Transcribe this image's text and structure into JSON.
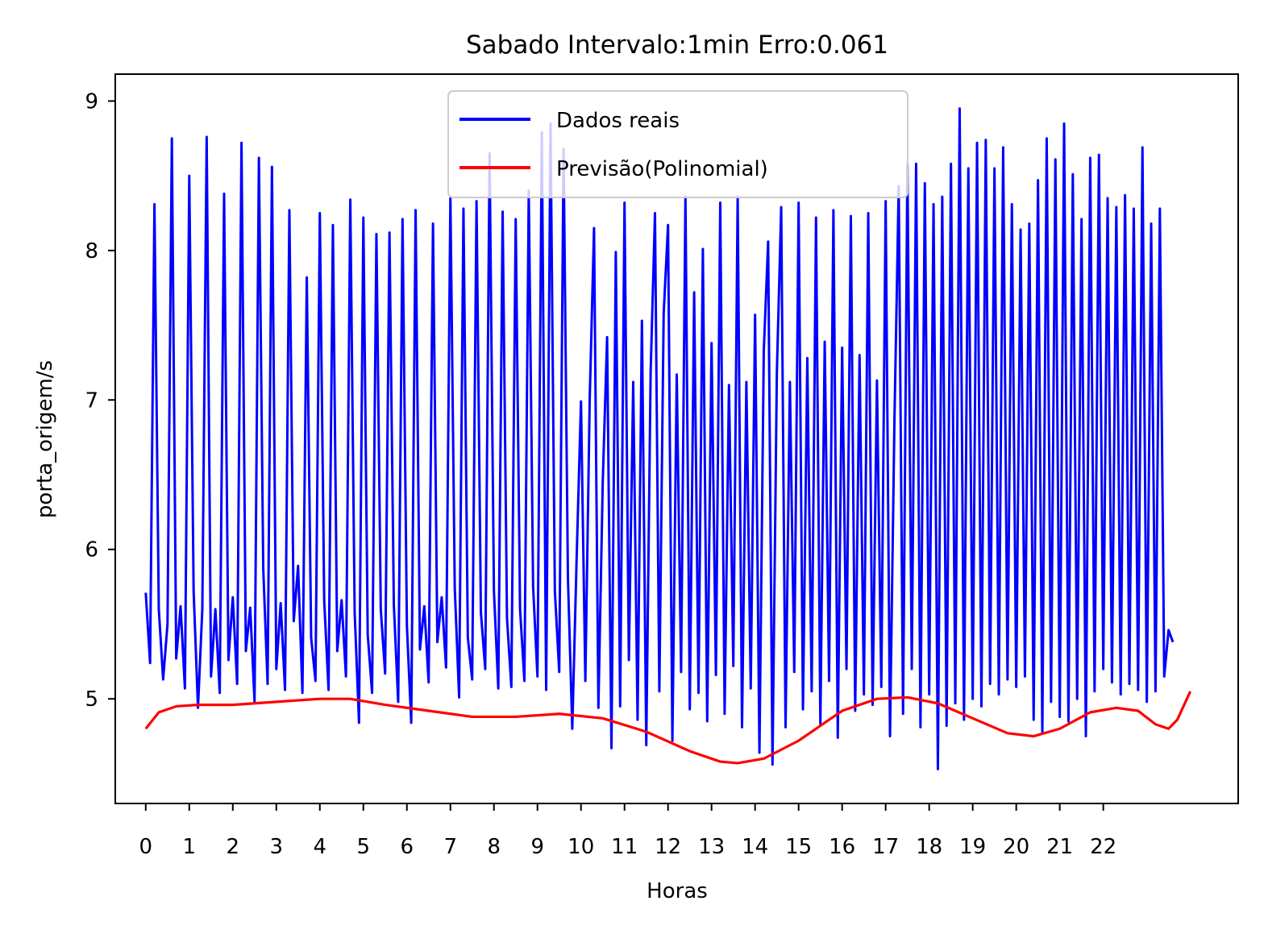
{
  "chart_data": {
    "type": "line",
    "title": "Sabado Intervalo:1min Erro:0.061",
    "xlabel": "Horas",
    "ylabel": "porta_origem/s",
    "xlim": [
      -0.7,
      25.1
    ],
    "ylim": [
      4.3,
      9.18
    ],
    "x_ticks": [
      0,
      1,
      2,
      3,
      4,
      5,
      6,
      7,
      8,
      9,
      10,
      11,
      12,
      13,
      14,
      15,
      16,
      17,
      18,
      19,
      20,
      21,
      22
    ],
    "x_tick_labels": [
      "0",
      "1",
      "2",
      "3",
      "4",
      "5",
      "6",
      "7",
      "8",
      "9",
      "10",
      "11",
      "12",
      "13",
      "14",
      "15",
      "16",
      "17",
      "18",
      "19",
      "20",
      "21",
      "22"
    ],
    "y_ticks": [
      5,
      6,
      7,
      8,
      9
    ],
    "y_tick_labels": [
      "5",
      "6",
      "7",
      "8",
      "9"
    ],
    "grid": false,
    "legend_position": "upper center",
    "series": [
      {
        "name": "Dados reais",
        "color": "#0000ff",
        "note_x_step_hours": 0.1,
        "x_start": 0,
        "values": [
          5.71,
          5.24,
          8.31,
          5.6,
          5.13,
          5.5,
          8.75,
          5.27,
          5.62,
          5.07,
          8.5,
          5.72,
          4.94,
          5.6,
          8.76,
          5.15,
          5.6,
          5.04,
          8.38,
          5.26,
          5.68,
          5.1,
          8.72,
          5.32,
          5.61,
          4.98,
          8.62,
          5.87,
          5.1,
          8.56,
          5.2,
          5.64,
          5.06,
          8.27,
          5.52,
          5.89,
          5.04,
          7.82,
          5.41,
          5.12,
          8.25,
          5.66,
          5.06,
          8.17,
          5.32,
          5.66,
          5.15,
          8.34,
          5.58,
          4.84,
          8.22,
          5.43,
          5.04,
          8.11,
          5.6,
          5.17,
          8.12,
          5.63,
          4.98,
          8.21,
          5.49,
          4.84,
          8.27,
          5.33,
          5.62,
          5.11,
          8.18,
          5.38,
          5.68,
          5.21,
          8.35,
          5.74,
          5.01,
          8.28,
          5.41,
          5.13,
          8.33,
          5.58,
          5.2,
          8.65,
          5.72,
          5.07,
          8.26,
          5.54,
          5.08,
          8.21,
          5.6,
          5.12,
          8.4,
          5.75,
          5.15,
          8.79,
          5.06,
          8.85,
          5.72,
          5.18,
          8.68,
          5.81,
          4.8,
          5.94,
          6.99,
          5.12,
          7.0,
          8.15,
          4.94,
          6.45,
          7.42,
          4.67,
          7.99,
          4.95,
          8.32,
          5.26,
          7.12,
          4.86,
          7.53,
          4.69,
          7.18,
          8.25,
          5.05,
          7.58,
          8.17,
          4.72,
          7.17,
          5.18,
          8.36,
          4.93,
          7.72,
          5.04,
          8.01,
          4.85,
          7.38,
          5.16,
          8.32,
          4.9,
          7.1,
          5.22,
          8.36,
          4.81,
          7.12,
          5.07,
          7.57,
          4.64,
          7.33,
          8.06,
          4.56,
          7.18,
          8.29,
          4.81,
          7.12,
          5.18,
          8.32,
          4.93,
          7.28,
          5.05,
          8.22,
          4.83,
          7.39,
          5.12,
          8.27,
          4.74,
          7.35,
          5.2,
          8.23,
          4.92,
          7.3,
          5.03,
          8.25,
          4.96,
          7.13,
          5.08,
          8.33,
          4.75,
          6.83,
          8.43,
          4.9,
          8.58,
          5.2,
          8.58,
          4.81,
          8.45,
          5.03,
          8.31,
          4.53,
          8.36,
          4.82,
          8.58,
          4.97,
          8.95,
          4.86,
          8.55,
          5.0,
          8.72,
          4.95,
          8.74,
          5.1,
          8.55,
          5.03,
          8.69,
          5.13,
          8.31,
          5.08,
          8.14,
          5.15,
          8.18,
          4.86,
          8.47,
          4.77,
          8.75,
          4.98,
          8.61,
          4.88,
          8.85,
          4.85,
          8.51,
          5.0,
          8.21,
          4.75,
          8.62,
          5.05,
          8.64,
          5.2,
          8.35,
          5.11,
          8.29,
          5.03,
          8.37,
          5.1,
          8.28,
          5.06,
          8.69,
          4.98,
          8.18,
          5.05,
          8.28,
          5.15,
          5.46,
          5.38
        ],
        "values_note": "approximate reading; sampled every ~0.1 h"
      },
      {
        "name": "Previsão(Polinomial)",
        "color": "#ff0000",
        "x": [
          0,
          0.3,
          0.7,
          1.2,
          2,
          3,
          4,
          4.7,
          5.5,
          6.5,
          7.5,
          8.5,
          9.5,
          10.5,
          11.5,
          12.5,
          13.2,
          13.6,
          14.2,
          15,
          16,
          16.8,
          17.5,
          18.2,
          19,
          19.8,
          20.4,
          21,
          21.7,
          22.3,
          22.8,
          23.2,
          23.5,
          23.7,
          24.0
        ],
        "values": [
          4.8,
          4.91,
          4.95,
          4.96,
          4.96,
          4.98,
          5.0,
          5.0,
          4.96,
          4.92,
          4.88,
          4.88,
          4.9,
          4.87,
          4.78,
          4.65,
          4.58,
          4.57,
          4.6,
          4.72,
          4.92,
          5.0,
          5.01,
          4.97,
          4.87,
          4.77,
          4.75,
          4.8,
          4.91,
          4.94,
          4.92,
          4.83,
          4.8,
          4.86,
          5.05
        ]
      }
    ]
  }
}
